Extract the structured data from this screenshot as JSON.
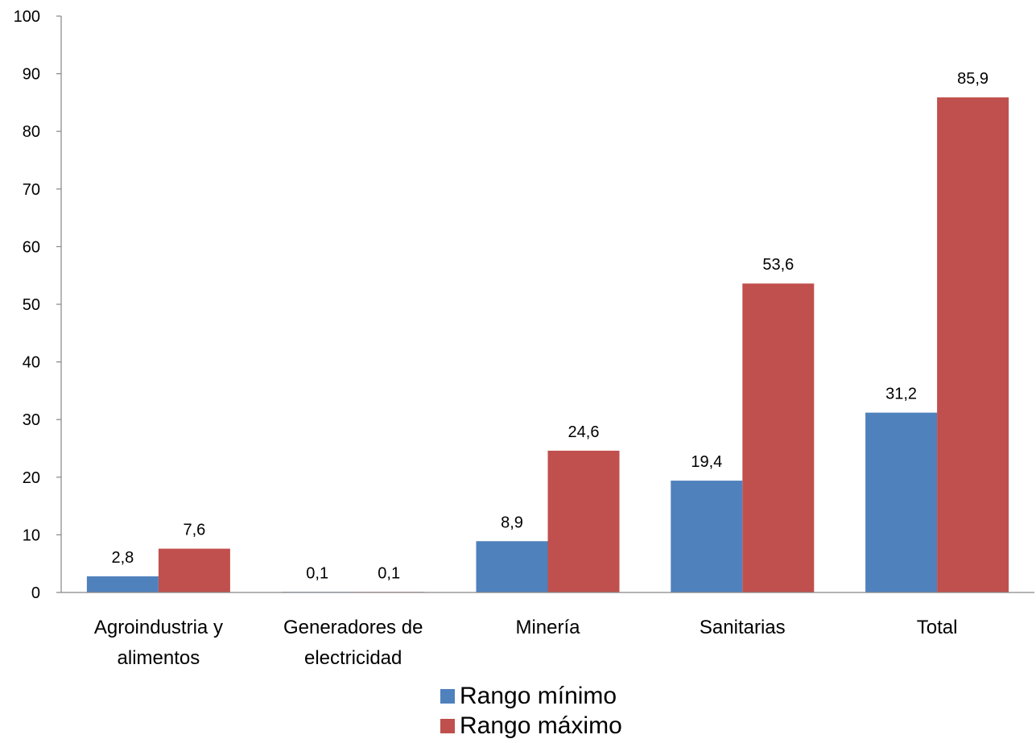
{
  "chart_data": {
    "type": "bar",
    "categories": [
      [
        "Agroindustria y",
        "alimentos"
      ],
      [
        "Generadores de",
        "electricidad"
      ],
      [
        "Minería"
      ],
      [
        "Sanitarias"
      ],
      [
        "Total"
      ]
    ],
    "series": [
      {
        "name": "Rango mínimo",
        "color": "#4F81BD",
        "values": [
          2.8,
          0.1,
          8.9,
          19.4,
          31.2
        ],
        "labels": [
          "2,8",
          "0,1",
          "8,9",
          "19,4",
          "31,2"
        ]
      },
      {
        "name": "Rango máximo",
        "color": "#C0504D",
        "values": [
          7.6,
          0.1,
          24.6,
          53.6,
          85.9
        ],
        "labels": [
          "7,6",
          "0,1",
          "24,6",
          "53,6",
          "85,9"
        ]
      }
    ],
    "ylim": [
      0,
      100
    ],
    "yticks": [
      0,
      10,
      20,
      30,
      40,
      50,
      60,
      70,
      80,
      90,
      100
    ],
    "grid": false,
    "legend_position": "bottom"
  }
}
